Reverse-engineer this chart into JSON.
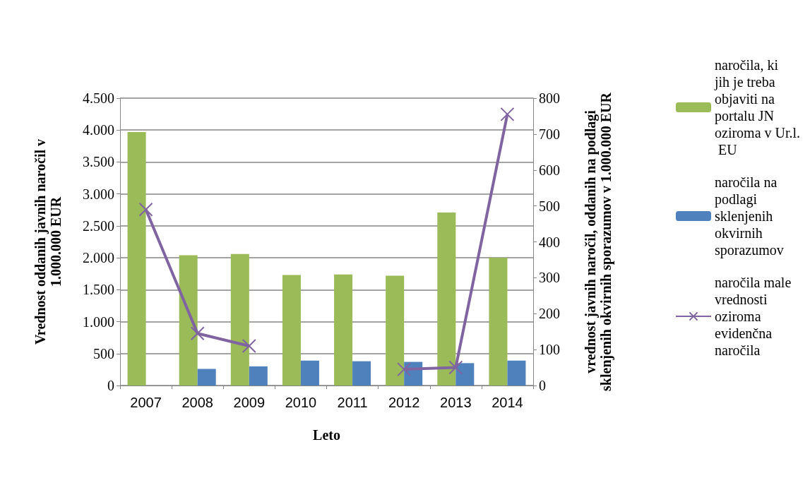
{
  "chart_data": {
    "type": "bar",
    "xlabel": "Leto",
    "ylabel": "Vrednost oddanih javnih naročil v 1.000.000 EUR",
    "y2label": "vrednost javnih naročil, oddanih na podlagi sklenjenih okvirnih sporazumov v 1.000.000 EUR",
    "categories": [
      "2007",
      "2008",
      "2009",
      "2010",
      "2011",
      "2012",
      "2013",
      "2014"
    ],
    "series": [
      {
        "name": "naročila, ki jih je treba objaviti na portalu JN oziroma v Ur.l. EU",
        "color": "#9bbb59",
        "values": [
          3970,
          2040,
          2060,
          1730,
          1740,
          1720,
          2710,
          2000
        ]
      },
      {
        "name": "naročila na podlagi sklenjenih okvirnih sporazumov",
        "color": "#4f81bd",
        "values": [
          null,
          260,
          300,
          390,
          380,
          370,
          350,
          390
        ]
      },
      {
        "name": "naročila male vrednosti oziroma evidenčna naročila",
        "type": "line",
        "axis": "y2",
        "color": "#8064a2",
        "marker": "cross",
        "values": [
          490,
          145,
          110,
          null,
          null,
          45,
          50,
          755
        ]
      }
    ],
    "ylim": [
      0,
      4500
    ],
    "yticks": [
      {
        "value": 0,
        "label": "0"
      },
      {
        "value": 500,
        "label": "500"
      },
      {
        "value": 1000,
        "label": "1.000"
      },
      {
        "value": 1500,
        "label": "1.500"
      },
      {
        "value": 2000,
        "label": "2.000"
      },
      {
        "value": 2500,
        "label": "2.500"
      },
      {
        "value": 3000,
        "label": "3.000"
      },
      {
        "value": 3500,
        "label": "3.500"
      },
      {
        "value": 4000,
        "label": "4.000"
      },
      {
        "value": 4500,
        "label": "4.500"
      }
    ],
    "y2lim": [
      0,
      800
    ],
    "y2ticks": [
      0,
      100,
      200,
      300,
      400,
      500,
      600,
      700,
      800
    ],
    "grid": "y",
    "legend": "right"
  }
}
